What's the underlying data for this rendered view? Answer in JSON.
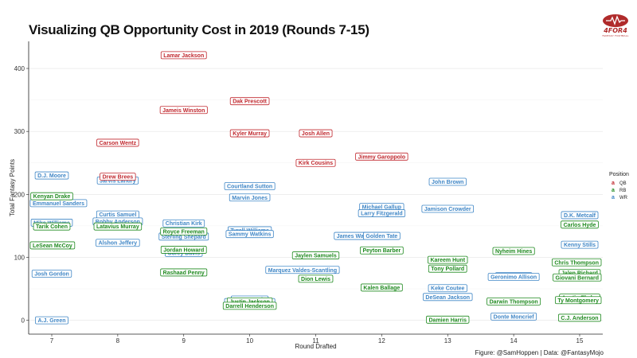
{
  "header": {
    "title": "Visualizing QB Opportunity Cost in 2019 (Rounds 7-15)"
  },
  "logo": {
    "text": "4FOR4",
    "subtext": "FANTASY FOOTBALL",
    "color": "#b02b2b"
  },
  "caption": "Figure: @SamHoppen | Data: @FantasyMojo",
  "colors": {
    "QB": "#c0272d",
    "RB": "#1f8a1f",
    "WR": "#3f86c6"
  },
  "chart_data": {
    "type": "scatter",
    "title": "Visualizing QB Opportunity Cost in 2019 (Rounds 7-15)",
    "xlabel": "Round Drafted",
    "ylabel": "Total Fantasy Points",
    "xlim": [
      6.65,
      15.35
    ],
    "ylim": [
      -22,
      443
    ],
    "xticks": [
      7,
      8,
      9,
      10,
      11,
      12,
      13,
      14,
      15
    ],
    "yticks": [
      0,
      100,
      200,
      300,
      400
    ],
    "grid": true,
    "legend": {
      "title": "Position",
      "placement": "right",
      "entries": [
        "QB",
        "RB",
        "WR"
      ]
    },
    "points": [
      {
        "name": "Lamar Jackson",
        "pos": "QB",
        "x": 9.0,
        "y": 421
      },
      {
        "name": "Dak Prescott",
        "pos": "QB",
        "x": 10.0,
        "y": 348
      },
      {
        "name": "Jameis Winston",
        "pos": "QB",
        "x": 9.0,
        "y": 334
      },
      {
        "name": "Kyler Murray",
        "pos": "QB",
        "x": 10.0,
        "y": 297
      },
      {
        "name": "Josh Allen",
        "pos": "QB",
        "x": 11.0,
        "y": 297
      },
      {
        "name": "Carson Wentz",
        "pos": "QB",
        "x": 8.0,
        "y": 282
      },
      {
        "name": "Jimmy Garoppolo",
        "pos": "QB",
        "x": 12.0,
        "y": 260
      },
      {
        "name": "Kirk Cousins",
        "pos": "QB",
        "x": 11.0,
        "y": 250
      },
      {
        "name": "Drew Brees",
        "pos": "QB",
        "x": 8.0,
        "y": 228
      },
      {
        "name": "D.J. Moore",
        "pos": "WR",
        "x": 7.0,
        "y": 230
      },
      {
        "name": "Jarvis Landry",
        "pos": "WR",
        "x": 8.0,
        "y": 222
      },
      {
        "name": "John Brown",
        "pos": "WR",
        "x": 13.0,
        "y": 220
      },
      {
        "name": "Courtland Sutton",
        "pos": "WR",
        "x": 10.0,
        "y": 213
      },
      {
        "name": "Kenyan Drake",
        "pos": "RB",
        "x": 7.0,
        "y": 197
      },
      {
        "name": "Marvin Jones",
        "pos": "WR",
        "x": 10.0,
        "y": 195
      },
      {
        "name": "Emmanuel Sanders",
        "pos": "WR",
        "x": 7.0,
        "y": 186
      },
      {
        "name": "Michael Gallup",
        "pos": "WR",
        "x": 12.0,
        "y": 180
      },
      {
        "name": "Jamison Crowder",
        "pos": "WR",
        "x": 13.0,
        "y": 177
      },
      {
        "name": "Larry Fitzgerald",
        "pos": "WR",
        "x": 12.0,
        "y": 170
      },
      {
        "name": "Curtis Samuel",
        "pos": "WR",
        "x": 8.0,
        "y": 168
      },
      {
        "name": "D.K. Metcalf",
        "pos": "WR",
        "x": 15.0,
        "y": 167
      },
      {
        "name": "Robby Anderson",
        "pos": "WR",
        "x": 8.0,
        "y": 157
      },
      {
        "name": "Mike Williams",
        "pos": "WR",
        "x": 7.0,
        "y": 155
      },
      {
        "name": "Christian Kirk",
        "pos": "WR",
        "x": 9.0,
        "y": 154
      },
      {
        "name": "Carlos Hyde",
        "pos": "RB",
        "x": 15.0,
        "y": 152
      },
      {
        "name": "Tarik Cohen",
        "pos": "RB",
        "x": 7.0,
        "y": 149
      },
      {
        "name": "Latavius Murray",
        "pos": "RB",
        "x": 8.0,
        "y": 149
      },
      {
        "name": "Tyrell Williams",
        "pos": "WR",
        "x": 10.0,
        "y": 143
      },
      {
        "name": "Royce Freeman",
        "pos": "RB",
        "x": 9.0,
        "y": 141
      },
      {
        "name": "Sammy Watkins",
        "pos": "WR",
        "x": 10.0,
        "y": 137
      },
      {
        "name": "Sterling Shepard",
        "pos": "WR",
        "x": 9.0,
        "y": 133
      },
      {
        "name": "James Washington",
        "pos": "WR",
        "x": 11.7,
        "y": 134
      },
      {
        "name": "Golden Tate",
        "pos": "WR",
        "x": 12.0,
        "y": 134
      },
      {
        "name": "Alshon Jeffery",
        "pos": "WR",
        "x": 8.0,
        "y": 123
      },
      {
        "name": "LeSean McCoy",
        "pos": "RB",
        "x": 7.0,
        "y": 119
      },
      {
        "name": "Kenny Stills",
        "pos": "WR",
        "x": 15.0,
        "y": 120
      },
      {
        "name": "Jordan Howard",
        "pos": "RB",
        "x": 9.0,
        "y": 112
      },
      {
        "name": "Peyton Barber",
        "pos": "RB",
        "x": 12.0,
        "y": 111
      },
      {
        "name": "Nyheim Hines",
        "pos": "RB",
        "x": 14.0,
        "y": 110
      },
      {
        "name": "Corey Davis",
        "pos": "WR",
        "x": 9.0,
        "y": 107
      },
      {
        "name": "Jaylen Samuels",
        "pos": "RB",
        "x": 11.0,
        "y": 103
      },
      {
        "name": "Kareem Hunt",
        "pos": "RB",
        "x": 13.0,
        "y": 96
      },
      {
        "name": "Chris Thompson",
        "pos": "RB",
        "x": 15.0,
        "y": 92
      },
      {
        "name": "Tony Pollard",
        "pos": "RB",
        "x": 13.0,
        "y": 82
      },
      {
        "name": "Marquez Valdes-Scantling",
        "pos": "WR",
        "x": 10.8,
        "y": 80
      },
      {
        "name": "Jalen Richard",
        "pos": "RB",
        "x": 15.0,
        "y": 75
      },
      {
        "name": "Rashaad Penny",
        "pos": "RB",
        "x": 9.0,
        "y": 76
      },
      {
        "name": "Josh Gordon",
        "pos": "WR",
        "x": 7.0,
        "y": 74
      },
      {
        "name": "Golden Tate",
        "pos": "WR",
        "x": 14.0,
        "y": 70
      },
      {
        "name": "Geronimo Allison",
        "pos": "WR",
        "x": 14.0,
        "y": 69
      },
      {
        "name": "Giovani Bernard",
        "pos": "RB",
        "x": 15.0,
        "y": 68
      },
      {
        "name": "Dion Lewis",
        "pos": "RB",
        "x": 11.0,
        "y": 66
      },
      {
        "name": "Kalen Ballage",
        "pos": "RB",
        "x": 12.0,
        "y": 52
      },
      {
        "name": "Keke Coutee",
        "pos": "WR",
        "x": 13.0,
        "y": 51
      },
      {
        "name": "DeSean Jackson",
        "pos": "WR",
        "x": 13.0,
        "y": 37
      },
      {
        "name": "Dante Pettis",
        "pos": "WR",
        "x": 10.0,
        "y": 33
      },
      {
        "name": "Austin Ekeler",
        "pos": "RB",
        "x": 15.0,
        "y": 36
      },
      {
        "name": "Ty Montgomery",
        "pos": "RB",
        "x": 15.0,
        "y": 32
      },
      {
        "name": "Darwin Thompson",
        "pos": "RB",
        "x": 14.0,
        "y": 30
      },
      {
        "name": "Justin Jackson",
        "pos": "RB",
        "x": 10.0,
        "y": 30
      },
      {
        "name": "Jordan Matthews",
        "pos": "WR",
        "x": 10.0,
        "y": 29
      },
      {
        "name": "Darrell Henderson",
        "pos": "RB",
        "x": 10.0,
        "y": 23
      },
      {
        "name": "Donte Moncrief",
        "pos": "WR",
        "x": 14.0,
        "y": 6
      },
      {
        "name": "C.J. Anderson",
        "pos": "RB",
        "x": 15.0,
        "y": 4
      },
      {
        "name": "Damien Harris",
        "pos": "RB",
        "x": 13.0,
        "y": 1
      },
      {
        "name": "A.J. Green",
        "pos": "WR",
        "x": 7.0,
        "y": 0
      }
    ]
  }
}
